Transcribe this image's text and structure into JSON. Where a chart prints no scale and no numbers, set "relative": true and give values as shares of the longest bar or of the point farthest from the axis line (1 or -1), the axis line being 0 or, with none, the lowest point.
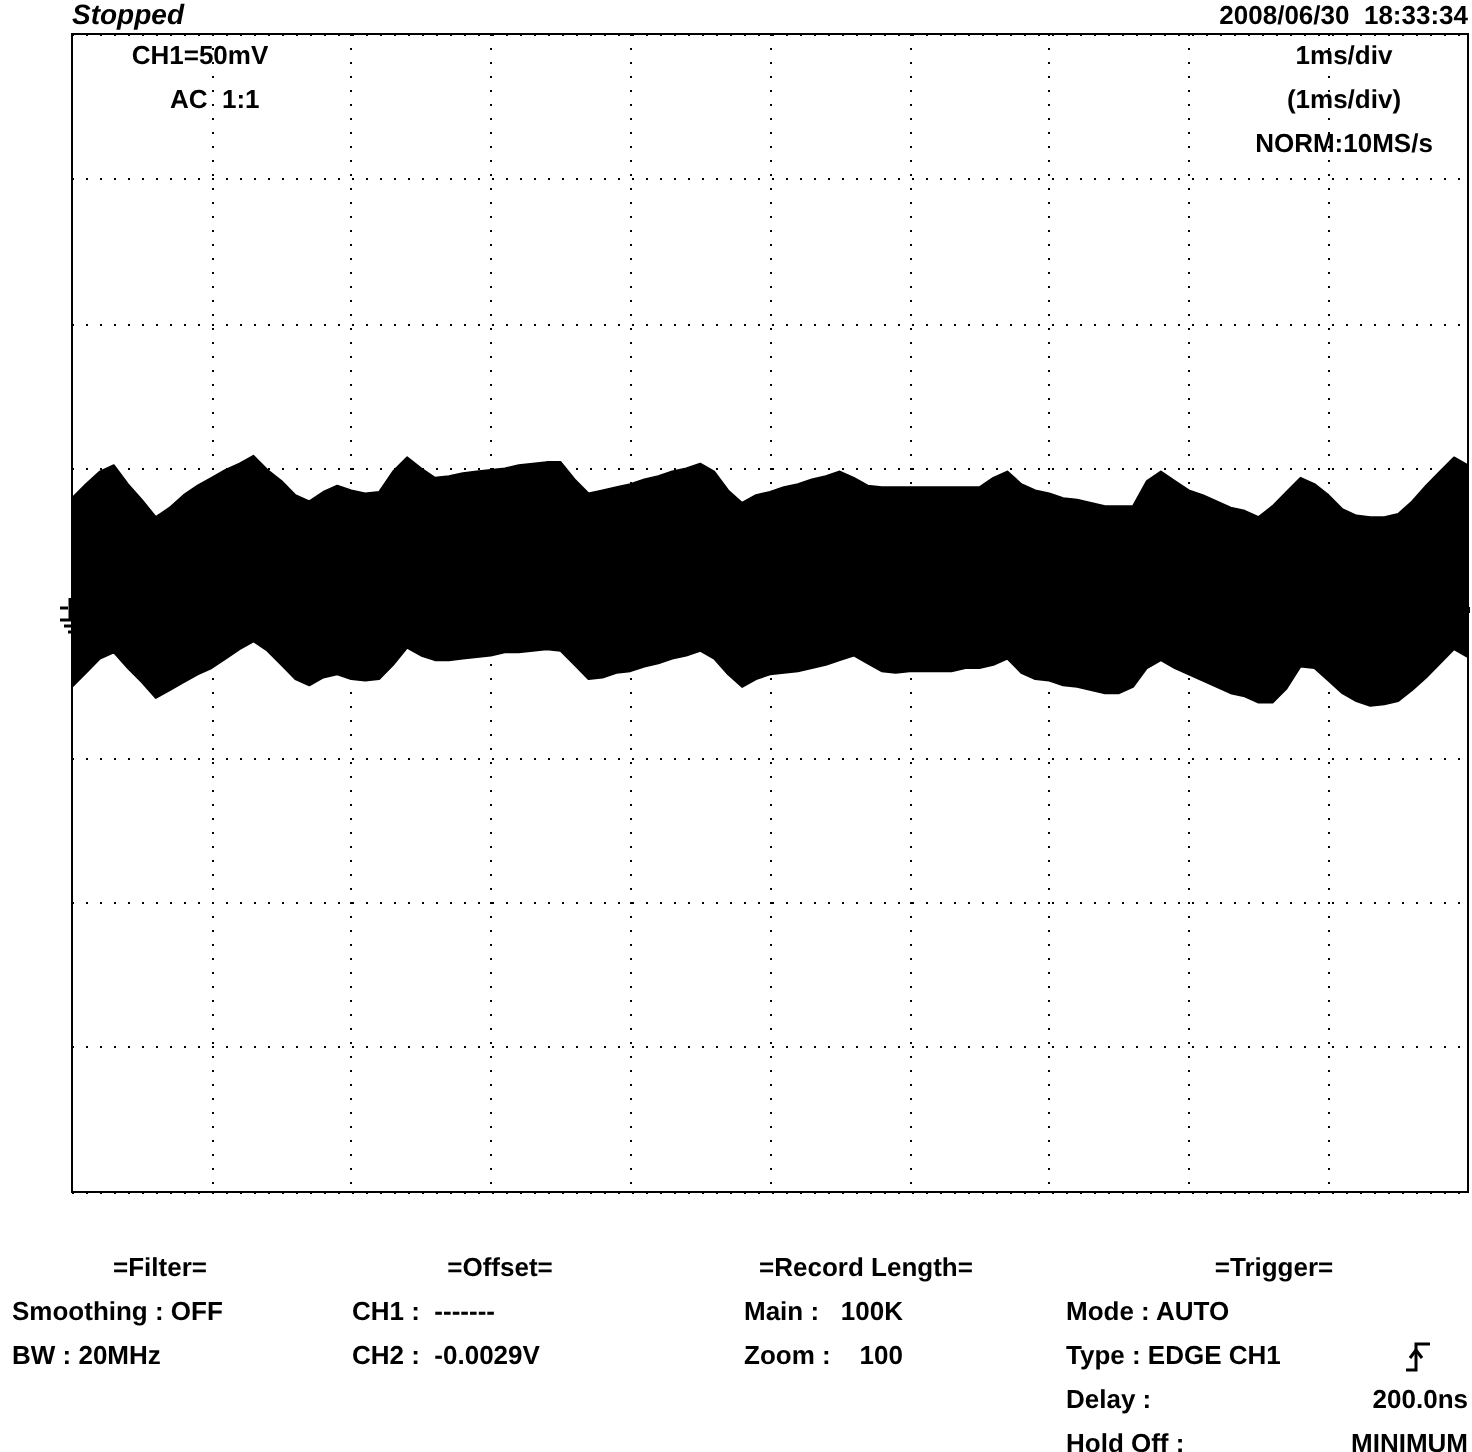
{
  "chart_data": {
    "type": "area",
    "relative": true,
    "grid": true,
    "categories": [
      null,
      null,
      null,
      null,
      null,
      null,
      null,
      null,
      null,
      null,
      null,
      null,
      null,
      null,
      null,
      null,
      null,
      null,
      null,
      null,
      null,
      null,
      null,
      null,
      null,
      null,
      null,
      null,
      null,
      null,
      null,
      null,
      null,
      null,
      null,
      null,
      null,
      null,
      null,
      null,
      null,
      null,
      null,
      null,
      null,
      null,
      null,
      null,
      null,
      null,
      null,
      null,
      null,
      null,
      null,
      null,
      null,
      null,
      null,
      null,
      null,
      null,
      null,
      null,
      null,
      null,
      null,
      null,
      null,
      null,
      null,
      null,
      null,
      null,
      null,
      null,
      null,
      null,
      null,
      null,
      null,
      null,
      null,
      null,
      null,
      null,
      null,
      null,
      null,
      null,
      null,
      null,
      null,
      null,
      null,
      null,
      null,
      null,
      null,
      null,
      null
    ],
    "series": [
      {
        "color": "#000000",
        "values": [
          0.73,
          0.82,
          0.9,
          0.94,
          0.82,
          0.72,
          0.61,
          0.67,
          0.75,
          0.81,
          0.86,
          0.91,
          0.95,
          1.0,
          0.91,
          0.84,
          0.75,
          0.71,
          0.77,
          0.81,
          0.78,
          0.76,
          0.77,
          0.9,
          0.99,
          0.92,
          0.86,
          0.87,
          0.89,
          0.9,
          0.91,
          0.92,
          0.94,
          0.95,
          0.96,
          0.96,
          0.85,
          0.76,
          0.78,
          0.8,
          0.82,
          0.85,
          0.87,
          0.9,
          0.92,
          0.95,
          0.9,
          0.78,
          0.7,
          0.75,
          0.77,
          0.8,
          0.82,
          0.85,
          0.87,
          0.9,
          0.86,
          0.81,
          0.8,
          0.8,
          0.8,
          0.8,
          0.8,
          0.8,
          0.8,
          0.8,
          0.86,
          0.9,
          0.82,
          0.78,
          0.76,
          0.73,
          0.72,
          0.7,
          0.68,
          0.68,
          0.68,
          0.84,
          0.9,
          0.84,
          0.78,
          0.75,
          0.71,
          0.67,
          0.65,
          0.61,
          0.68,
          0.77,
          0.86,
          0.82,
          0.75,
          0.66,
          0.62,
          0.61,
          0.61,
          0.63,
          0.71,
          0.81,
          0.9,
          0.99,
          0.94
        ]
      },
      {
        "color": "#000000",
        "values": [
          -0.47,
          -0.38,
          -0.29,
          -0.25,
          -0.35,
          -0.44,
          -0.54,
          -0.49,
          -0.44,
          -0.39,
          -0.35,
          -0.29,
          -0.23,
          -0.18,
          -0.24,
          -0.33,
          -0.42,
          -0.46,
          -0.41,
          -0.39,
          -0.42,
          -0.43,
          -0.42,
          -0.33,
          -0.22,
          -0.27,
          -0.3,
          -0.3,
          -0.29,
          -0.28,
          -0.27,
          -0.25,
          -0.25,
          -0.24,
          -0.23,
          -0.24,
          -0.33,
          -0.42,
          -0.41,
          -0.38,
          -0.37,
          -0.34,
          -0.32,
          -0.29,
          -0.27,
          -0.24,
          -0.29,
          -0.39,
          -0.47,
          -0.42,
          -0.39,
          -0.38,
          -0.37,
          -0.35,
          -0.33,
          -0.3,
          -0.27,
          -0.32,
          -0.37,
          -0.38,
          -0.37,
          -0.37,
          -0.37,
          -0.37,
          -0.35,
          -0.35,
          -0.33,
          -0.29,
          -0.38,
          -0.42,
          -0.43,
          -0.46,
          -0.47,
          -0.49,
          -0.51,
          -0.51,
          -0.47,
          -0.35,
          -0.3,
          -0.35,
          -0.39,
          -0.43,
          -0.47,
          -0.51,
          -0.53,
          -0.57,
          -0.57,
          -0.48,
          -0.34,
          -0.35,
          -0.43,
          -0.51,
          -0.56,
          -0.59,
          -0.58,
          -0.56,
          -0.49,
          -0.41,
          -0.32,
          -0.23,
          -0.28
        ]
      }
    ],
    "annotations": [
      "Stopped",
      "2008/06/30  18:33:34",
      "CH1=50mV",
      "AC  1:1",
      "1ms/div",
      "(1ms/div)",
      "NORM:10MS/s",
      "=Filter=",
      "Smoothing : OFF",
      "BW : 20MHz",
      "=Offset=",
      "CH1 :  -------",
      "CH2 :  -0.0029V",
      "=Record Length=",
      "Main :   100K",
      "Zoom :    100",
      "=Trigger=",
      "Mode : AUTO",
      "Type : EDGE CH1",
      "Delay :",
      "200.0ns",
      "Hold Off :",
      "MINIMUM"
    ]
  }
}
